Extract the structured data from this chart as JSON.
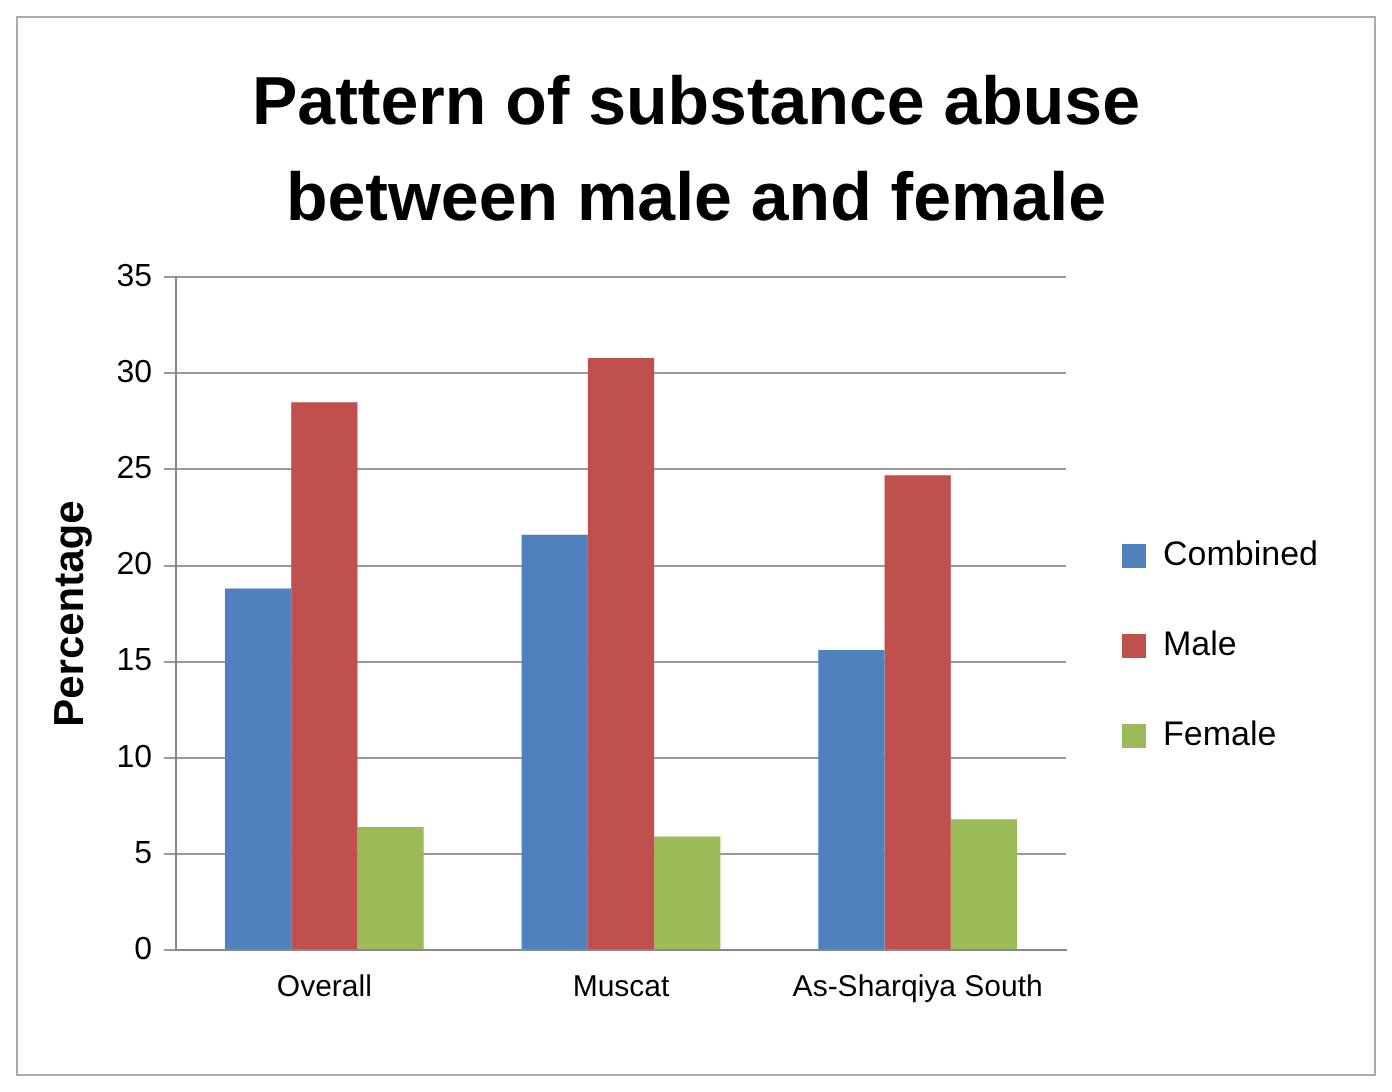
{
  "chart_data": {
    "type": "bar",
    "title": "Pattern of substance abuse between male and female",
    "ylabel": "Percentage",
    "categories": [
      "Overall",
      "Muscat",
      "As-Sharqiya South"
    ],
    "series": [
      {
        "name": "Combined",
        "color": "#4f81bd",
        "values": [
          18.8,
          21.6,
          15.6
        ]
      },
      {
        "name": "Male",
        "color": "#c0504d",
        "values": [
          28.5,
          30.8,
          24.7
        ]
      },
      {
        "name": "Female",
        "color": "#9bbb59",
        "values": [
          6.4,
          5.9,
          6.8
        ]
      }
    ],
    "ylim": [
      0,
      35
    ],
    "yticks": [
      0,
      5,
      10,
      15,
      20,
      25,
      30,
      35
    ],
    "grid": "y",
    "legend": "right"
  }
}
